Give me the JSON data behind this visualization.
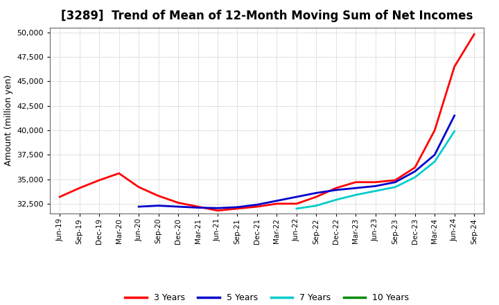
{
  "title": "[3289]  Trend of Mean of 12-Month Moving Sum of Net Incomes",
  "ylabel": "Amount (million yen)",
  "ylim": [
    31500,
    50500
  ],
  "yticks": [
    32500,
    35000,
    37500,
    40000,
    42500,
    45000,
    47500,
    50000
  ],
  "background_color": "#ffffff",
  "plot_bg_color": "#ffffff",
  "grid_color": "#999999",
  "x_labels": [
    "Jun-19",
    "Sep-19",
    "Dec-19",
    "Mar-20",
    "Jun-20",
    "Sep-20",
    "Dec-20",
    "Mar-21",
    "Jun-21",
    "Sep-21",
    "Dec-21",
    "Mar-22",
    "Jun-22",
    "Sep-22",
    "Dec-22",
    "Mar-23",
    "Jun-23",
    "Sep-23",
    "Dec-23",
    "Mar-24",
    "Jun-24",
    "Sep-24"
  ],
  "series": {
    "3 Years": {
      "color": "#ff0000",
      "data": [
        33200,
        34100,
        34900,
        35600,
        34200,
        33300,
        32600,
        32200,
        31800,
        32000,
        32200,
        32500,
        32500,
        33200,
        34100,
        34700,
        34700,
        34900,
        36200,
        40000,
        46500,
        49800
      ]
    },
    "5 Years": {
      "color": "#0000cc",
      "data": [
        null,
        null,
        null,
        null,
        32200,
        32300,
        32200,
        32100,
        32050,
        32150,
        32400,
        32800,
        33200,
        33600,
        33900,
        34100,
        34300,
        34700,
        35800,
        37500,
        41500,
        null
      ]
    },
    "7 Years": {
      "color": "#00cccc",
      "data": [
        null,
        null,
        null,
        null,
        null,
        null,
        null,
        null,
        null,
        null,
        null,
        null,
        32000,
        32300,
        32900,
        33400,
        33800,
        34200,
        35200,
        36800,
        39900,
        null
      ]
    },
    "10 Years": {
      "color": "#008800",
      "data": [
        null,
        null,
        null,
        null,
        null,
        null,
        null,
        null,
        null,
        null,
        null,
        null,
        null,
        null,
        null,
        null,
        null,
        null,
        null,
        null,
        null,
        null
      ]
    }
  },
  "legend_labels": [
    "3 Years",
    "5 Years",
    "7 Years",
    "10 Years"
  ],
  "legend_colors": [
    "#ff0000",
    "#0000cc",
    "#00cccc",
    "#008800"
  ],
  "title_fontsize": 12,
  "ylabel_fontsize": 9,
  "tick_fontsize": 8,
  "xtick_fontsize": 7.5,
  "legend_fontsize": 9
}
